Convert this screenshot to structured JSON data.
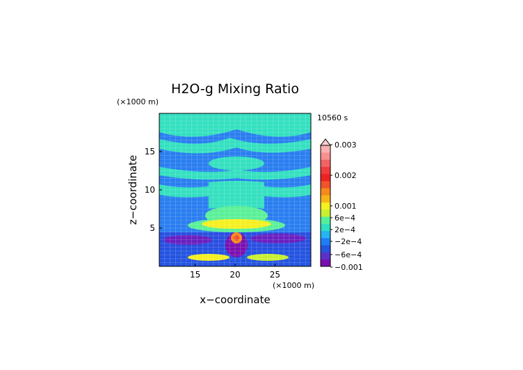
{
  "chart_data": {
    "type": "heatmap",
    "title": "H2O-g Mixing Ratio",
    "time_label": "10560 s",
    "xlabel": "x−coordinate",
    "ylabel": "z−coordinate",
    "x_unit_label": "(×1000 m)",
    "y_unit_label": "(×1000 m)",
    "xlim": [
      10.5,
      29.5
    ],
    "ylim": [
      0,
      20
    ],
    "x_ticks": [
      15,
      20,
      25
    ],
    "y_ticks": [
      5,
      10,
      15
    ],
    "grid": true,
    "colorbar": {
      "labels": [
        "0.003",
        "0.002",
        "0.001",
        "6e−4",
        "2e−4",
        "−2e−4",
        "−6e−4",
        "−0.001"
      ],
      "colors": [
        "#7b10b0",
        "#5a32c8",
        "#2454e0",
        "#1e7ef5",
        "#25b4f0",
        "#2ee0c0",
        "#52f09a",
        "#c8f030",
        "#f5f020",
        "#f7b418",
        "#f58a1c",
        "#f2522c",
        "#ee2222",
        "#f03c3c",
        "#f26262",
        "#f79090",
        "#fab0b0"
      ]
    }
  },
  "colors": {
    "background": "#ffffff",
    "frame": "#000000"
  }
}
